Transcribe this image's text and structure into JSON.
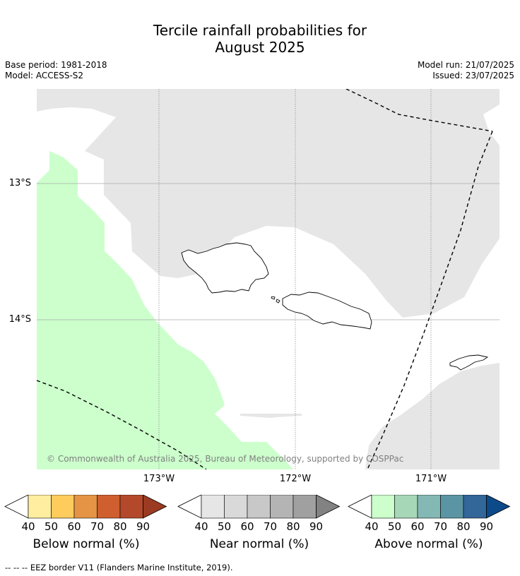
{
  "title_line1": "Tercile rainfall probabilities for",
  "title_line2": "August 2025",
  "base_period": "Base period: 1981-2018",
  "model": "Model: ACCESS-S2",
  "model_run": "Model run: 21/07/2025",
  "issued": "Issued: 23/07/2025",
  "lat_labels": [
    "13°S",
    "14°S"
  ],
  "lon_labels": [
    "173°W",
    "172°W",
    "171°W"
  ],
  "copyright": "© Commonwealth of Australia 2025, Bureau of Meteorology, supported by COSPPac",
  "colorbars": [
    {
      "label": "Below normal (%)",
      "ticks": [
        "40",
        "50",
        "60",
        "70",
        "80",
        "90"
      ],
      "colors": [
        "#ffeda0",
        "#fecc5c",
        "#e49444",
        "#cf5f2f",
        "#b3492a",
        "#9b3b22"
      ]
    },
    {
      "label": "Near normal (%)",
      "ticks": [
        "40",
        "50",
        "60",
        "70",
        "80",
        "90"
      ],
      "colors": [
        "#e6e6e6",
        "#d9d9d9",
        "#c8c8c8",
        "#b4b4b4",
        "#a0a0a0",
        "#828282"
      ]
    },
    {
      "label": "Above normal (%)",
      "ticks": [
        "40",
        "50",
        "60",
        "70",
        "80",
        "90"
      ],
      "colors": [
        "#ccffcc",
        "#a6d8b8",
        "#84b8b4",
        "#5b95a3",
        "#336699",
        "#0d4a8a"
      ]
    }
  ],
  "footer": "--  --  -- EEZ border V11 (Flanders Marine Institute, 2019).",
  "map_colors": {
    "near_normal_40": "#e6e6e6",
    "above_normal_40": "#ccffcc"
  }
}
